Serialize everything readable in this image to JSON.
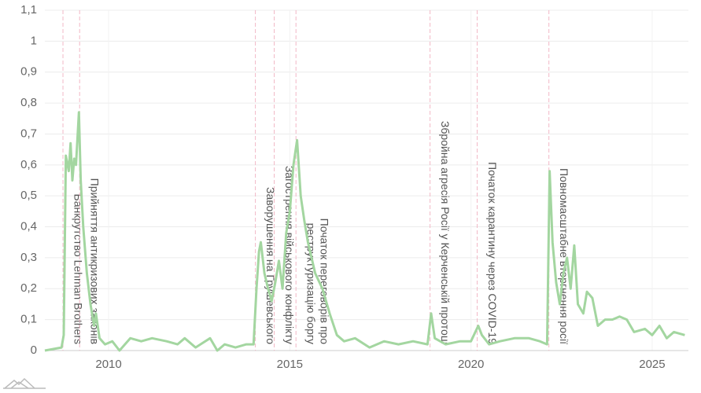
{
  "chart_data": {
    "type": "line",
    "xlim": [
      2008.24,
      2026.0
    ],
    "xticks": [
      2010,
      2015,
      2020,
      2025
    ],
    "ylim": [
      0,
      1.1
    ],
    "yticks": [
      0,
      {
        "value": 0.1,
        "label": "0,1"
      },
      {
        "value": 0.2,
        "label": "0,2"
      },
      {
        "value": 0.3,
        "label": "0,3"
      },
      {
        "value": 0.4,
        "label": "0,4"
      },
      {
        "value": 0.5,
        "label": "0,5"
      },
      {
        "value": 0.6,
        "label": "0,6"
      },
      {
        "value": 0.7,
        "label": "0,7"
      },
      {
        "value": 0.8,
        "label": "0,8"
      },
      {
        "value": 0.9,
        "label": "0,9"
      },
      1,
      {
        "value": 1.1,
        "label": "1,1"
      }
    ],
    "grid": true,
    "series": [
      {
        "color": "#a3d6a0",
        "x": [
          2008.24,
          2008.7,
          2008.76,
          2008.82,
          2008.9,
          2008.95,
          2009.0,
          2009.05,
          2009.1,
          2009.18,
          2009.23,
          2009.3,
          2009.4,
          2009.5,
          2009.6,
          2009.65,
          2009.75,
          2009.9,
          2010.1,
          2010.3,
          2010.6,
          2010.9,
          2011.2,
          2011.6,
          2011.9,
          2012.1,
          2012.4,
          2012.8,
          2013.0,
          2013.2,
          2013.5,
          2013.8,
          2014.0,
          2014.08,
          2014.15,
          2014.2,
          2014.3,
          2014.4,
          2014.5,
          2014.6,
          2014.7,
          2014.8,
          2014.9,
          2015.0,
          2015.1,
          2015.2,
          2015.3,
          2015.4,
          2015.5,
          2015.7,
          2015.9,
          2016.1,
          2016.3,
          2016.5,
          2016.8,
          2017.2,
          2017.6,
          2018.0,
          2018.4,
          2018.8,
          2018.9,
          2019.0,
          2019.3,
          2019.7,
          2020.0,
          2020.2,
          2020.3,
          2020.5,
          2020.8,
          2021.2,
          2021.6,
          2021.9,
          2022.1,
          2022.17,
          2022.25,
          2022.35,
          2022.45,
          2022.55,
          2022.65,
          2022.75,
          2022.85,
          2022.95,
          2023.1,
          2023.2,
          2023.35,
          2023.5,
          2023.7,
          2023.9,
          2024.1,
          2024.3,
          2024.5,
          2024.8,
          2025.0,
          2025.2,
          2025.4,
          2025.6,
          2025.9
        ],
        "values": [
          0.0,
          0.01,
          0.05,
          0.63,
          0.58,
          0.67,
          0.55,
          0.62,
          0.6,
          0.77,
          0.55,
          0.4,
          0.25,
          0.15,
          0.08,
          0.12,
          0.04,
          0.02,
          0.03,
          0.0,
          0.04,
          0.03,
          0.04,
          0.03,
          0.02,
          0.04,
          0.01,
          0.04,
          0.0,
          0.02,
          0.01,
          0.02,
          0.02,
          0.2,
          0.32,
          0.35,
          0.25,
          0.2,
          0.16,
          0.22,
          0.29,
          0.2,
          0.38,
          0.45,
          0.6,
          0.68,
          0.5,
          0.42,
          0.35,
          0.25,
          0.2,
          0.12,
          0.05,
          0.03,
          0.04,
          0.01,
          0.03,
          0.02,
          0.03,
          0.02,
          0.12,
          0.04,
          0.02,
          0.03,
          0.03,
          0.08,
          0.05,
          0.02,
          0.03,
          0.04,
          0.04,
          0.03,
          0.02,
          0.58,
          0.35,
          0.22,
          0.15,
          0.25,
          0.3,
          0.2,
          0.34,
          0.15,
          0.12,
          0.19,
          0.17,
          0.08,
          0.1,
          0.1,
          0.11,
          0.1,
          0.06,
          0.07,
          0.05,
          0.08,
          0.04,
          0.06,
          0.05
        ]
      }
    ],
    "annotations": [
      {
        "x": 2008.74,
        "lines": [
          "Банкрутство Lehman Brothers"
        ]
      },
      {
        "x": 2009.2,
        "lines": [
          "Прийняття антикризових законів"
        ]
      },
      {
        "x": 2014.05,
        "lines": [
          "Заворушення на Грушевського"
        ]
      },
      {
        "x": 2014.57,
        "lines": [
          "Загострення військового конфлікту"
        ]
      },
      {
        "x": 2015.17,
        "lines": [
          "Початок переговорів про",
          "реструктуризацію боргу"
        ]
      },
      {
        "x": 2018.87,
        "lines": [
          "Збройна агресія Росії у Керченській протоці"
        ]
      },
      {
        "x": 2020.17,
        "lines": [
          "Початок карантину через COVID-19"
        ]
      },
      {
        "x": 2022.15,
        "lines": [
          "Повномасштабне вторгнення росії"
        ]
      }
    ]
  }
}
